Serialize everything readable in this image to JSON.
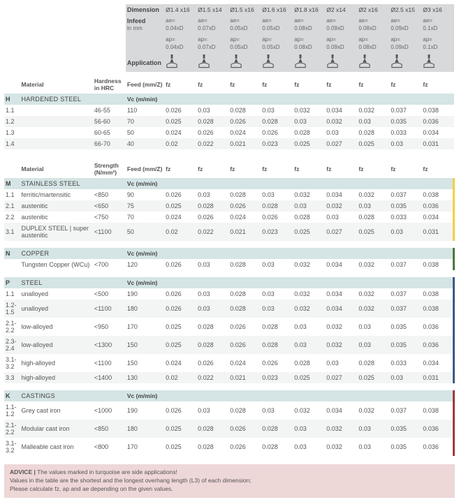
{
  "header": {
    "dimension_label": "Dimension",
    "infeed_label": "Infeed",
    "infeed_unit": "in mm",
    "application_label": "Application",
    "material_label": "Material",
    "hardness_label": "Hardness in HRC",
    "strength_label": "Strength (N/mm²)",
    "feed_label": "Feed (mm/Z)",
    "vc_label": "Vc (m/min)",
    "fz_label": "fz",
    "dims": [
      "Ø1.4 x16",
      "Ø1.5 x14",
      "Ø1.5 x16",
      "Ø1.6 x16",
      "Ø1.8 x16",
      "Ø2 x14",
      "Ø2 x16",
      "Ø2.5 x15",
      "Ø3 x16"
    ],
    "ae": [
      "ae= 0.04xD",
      "ae= 0.07xD",
      "ae= 0.05xD",
      "ae= 0.05xD",
      "ae= 0.08xD",
      "ae= 0.09xD",
      "ae= 0.08xD",
      "ae= 0.09xD",
      "ae= 0.1xD"
    ],
    "ap": [
      "ap= 0.04xD",
      "ap= 0.07xD",
      "ap= 0.05xD",
      "ap= 0.05xD",
      "ap= 0.08xD",
      "ap= 0.09xD",
      "ap= 0.08xD",
      "ap= 0.09xD",
      "ap= 0.1xD"
    ]
  },
  "sections": [
    {
      "code": "H",
      "name": "HARDENED STEEL",
      "colhead": "Hardness in HRC",
      "bar": "",
      "rows": [
        {
          "c": "1.1",
          "m": "",
          "h": "46-55",
          "v": "110",
          "f": [
            "0.026",
            "0.03",
            "0.028",
            "0.03",
            "0.032",
            "0.034",
            "0.032",
            "0.037",
            "0.038"
          ],
          "s": "odd"
        },
        {
          "c": "1.2",
          "m": "",
          "h": "56-60",
          "v": "70",
          "f": [
            "0.025",
            "0.028",
            "0.026",
            "0.028",
            "0.03",
            "0.032",
            "0.03",
            "0.035",
            "0.036"
          ],
          "s": "even"
        },
        {
          "c": "1.3",
          "m": "",
          "h": "60-65",
          "v": "50",
          "f": [
            "0.024",
            "0.026",
            "0.024",
            "0.026",
            "0.028",
            "0.03",
            "0.028",
            "0.033",
            "0.034"
          ],
          "s": "odd"
        },
        {
          "c": "1.4",
          "m": "",
          "h": "66-70",
          "v": "40",
          "f": [
            "0.02",
            "0.022",
            "0.021",
            "0.023",
            "0.025",
            "0.027",
            "0.025",
            "0.03",
            "0.031"
          ],
          "s": "even"
        }
      ]
    },
    {
      "code": "M",
      "name": "STAINLESS STEEL",
      "colhead": "Strength (N/mm²)",
      "bar": "bar-y",
      "rows": [
        {
          "c": "1.1",
          "m": "ferritic/martensitic",
          "h": "<850",
          "v": "90",
          "f": [
            "0.026",
            "0.03",
            "0.028",
            "0.03",
            "0.032",
            "0.034",
            "0.032",
            "0.037",
            "0.038"
          ],
          "s": "odd"
        },
        {
          "c": "2.1",
          "m": "austenitic",
          "h": "<650",
          "v": "75",
          "f": [
            "0.025",
            "0.028",
            "0.026",
            "0.028",
            "0.03",
            "0.032",
            "0.03",
            "0.035",
            "0.036"
          ],
          "s": "even"
        },
        {
          "c": "2.2",
          "m": "austenitic",
          "h": "<750",
          "v": "70",
          "f": [
            "0.024",
            "0.026",
            "0.024",
            "0.026",
            "0.028",
            "0.03",
            "0.028",
            "0.033",
            "0.034"
          ],
          "s": "odd"
        },
        {
          "c": "3.1",
          "m": "DUPLEX STEEL | super austenitic",
          "h": "<1100",
          "v": "50",
          "f": [
            "0.02",
            "0.022",
            "0.021",
            "0.023",
            "0.025",
            "0.027",
            "0.025",
            "0.03",
            "0.031"
          ],
          "s": "even"
        }
      ]
    },
    {
      "code": "N",
      "name": "COPPER",
      "colhead": "",
      "bar": "bar-g",
      "rows": [
        {
          "c": "",
          "m": "Tungsten Copper (WCu)",
          "h": "<700",
          "v": "120",
          "f": [
            "0.026",
            "0.03",
            "0.028",
            "0.03",
            "0.032",
            "0.034",
            "0.032",
            "0.037",
            "0.038"
          ],
          "s": "odd"
        }
      ]
    },
    {
      "code": "P",
      "name": "STEEL",
      "colhead": "",
      "bar": "bar-b",
      "rows": [
        {
          "c": "1.1",
          "m": "unalloyed",
          "h": "<500",
          "v": "190",
          "f": [
            "0.026",
            "0.03",
            "0.028",
            "0.03",
            "0.032",
            "0.034",
            "0.032",
            "0.037",
            "0.038"
          ],
          "s": "odd"
        },
        {
          "c": "1.2-1.5",
          "m": "unalloyed",
          "h": "<1100",
          "v": "180",
          "f": [
            "0.026",
            "0.03",
            "0.028",
            "0.03",
            "0.032",
            "0.034",
            "0.032",
            "0.037",
            "0.038"
          ],
          "s": "even"
        },
        {
          "c": "2.1-2.2",
          "m": "low-alloyed",
          "h": "<950",
          "v": "170",
          "f": [
            "0.025",
            "0.028",
            "0.026",
            "0.028",
            "0.03",
            "0.032",
            "0.03",
            "0.035",
            "0.036"
          ],
          "s": "odd"
        },
        {
          "c": "2.3-2.4",
          "m": "low-alloyed",
          "h": "<1300",
          "v": "150",
          "f": [
            "0.025",
            "0.028",
            "0.026",
            "0.028",
            "0.03",
            "0.032",
            "0.03",
            "0.035",
            "0.036"
          ],
          "s": "even"
        },
        {
          "c": "3.1-3.2",
          "m": "high-alloyed",
          "h": "<1100",
          "v": "150",
          "f": [
            "0.024",
            "0.026",
            "0.024",
            "0.026",
            "0.028",
            "0.03",
            "0.028",
            "0.033",
            "0.034"
          ],
          "s": "odd"
        },
        {
          "c": "3.3",
          "m": "high-alloyed",
          "h": "<1400",
          "v": "130",
          "f": [
            "0.02",
            "0.022",
            "0.021",
            "0.023",
            "0.025",
            "0.027",
            "0.025",
            "0.03",
            "0.031"
          ],
          "s": "even"
        }
      ]
    },
    {
      "code": "K",
      "name": "CASTINGS",
      "colhead": "",
      "bar": "bar-r",
      "rows": [
        {
          "c": "1.1-1.2",
          "m": "Grey cast iron",
          "h": "<1000",
          "v": "190",
          "f": [
            "0.026",
            "0.03",
            "0.028",
            "0.03",
            "0.032",
            "0.034",
            "0.032",
            "0.037",
            "0.038"
          ],
          "s": "odd"
        },
        {
          "c": "2.1-2.2",
          "m": "Modular cast iron",
          "h": "<850",
          "v": "180",
          "f": [
            "0.025",
            "0.028",
            "0.026",
            "0.028",
            "0.03",
            "0.032",
            "0.03",
            "0.035",
            "0.036"
          ],
          "s": "even"
        },
        {
          "c": "3.1-3.2",
          "m": "Malleable cast iron",
          "h": "<800",
          "v": "170",
          "f": [
            "0.025",
            "0.028",
            "0.026",
            "0.028",
            "0.03",
            "0.032",
            "0.03",
            "0.035",
            "0.036"
          ],
          "s": "odd"
        }
      ]
    }
  ],
  "advice": {
    "title": "ADVICE |",
    "l1": "The values marked in turquoise are side applications!",
    "l2": "Values in the table are the shortest and the longest overhang length (L3) of each dimension;",
    "l3": "Please calculate fz, ap and ae depending on the given values."
  },
  "colors": {
    "hdr_bg": "#d7d9da",
    "cat_bg": "#d5e4e4",
    "stripe": "#f3f5f5",
    "advice_bg": "#eed7d7"
  }
}
